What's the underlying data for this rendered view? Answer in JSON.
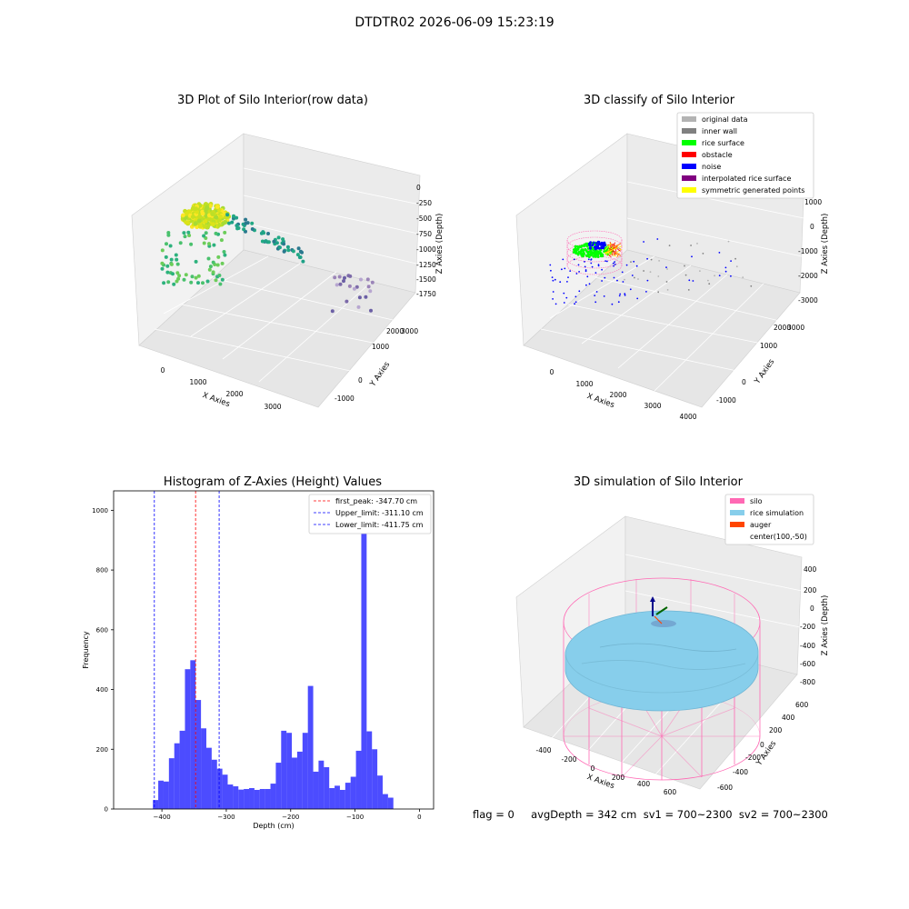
{
  "suptitle": "DTDTR02 2026-06-09 15:23:19",
  "panels": {
    "raw": {
      "title": "3D Plot of Silo Interior(row data)",
      "xlabel": "X Axies",
      "ylabel": "Y Axies",
      "zlabel": "Z Axies (Depth)",
      "xticks": [
        "0",
        "1000",
        "2000",
        "3000"
      ],
      "yticks": [
        "-1000",
        "0",
        "1000",
        "2000",
        "3000"
      ],
      "zticks": [
        "0",
        "-250",
        "-500",
        "-750",
        "-1000",
        "-1250",
        "-1500",
        "-1750"
      ]
    },
    "classify": {
      "title": "3D classify of Silo Interior",
      "xlabel": "X Axies",
      "ylabel": "Y Axies",
      "zlabel": "Z Axies (Depth)",
      "xticks": [
        "0",
        "1000",
        "2000",
        "3000",
        "4000"
      ],
      "yticks": [
        "-1000",
        "0",
        "1000",
        "2000",
        "3000"
      ],
      "zticks": [
        "1000",
        "0",
        "-1000",
        "-2000",
        "-3000"
      ],
      "legend": [
        {
          "label": "original data",
          "color": "#b3b3b3"
        },
        {
          "label": "inner wall",
          "color": "#808080"
        },
        {
          "label": "rice surface",
          "color": "#00ff00"
        },
        {
          "label": "obstacle",
          "color": "#ff0000"
        },
        {
          "label": "noise",
          "color": "#0000ff"
        },
        {
          "label": "interpolated rice surface",
          "color": "#800080"
        },
        {
          "label": "symmetric generated points",
          "color": "#ffff00"
        }
      ]
    },
    "sim": {
      "title": "3D simulation of Silo Interior",
      "xlabel": "X Axies",
      "ylabel": "Y Axies",
      "zlabel": "Z Axies (Depth)",
      "xticks": [
        "-400",
        "-200",
        "0",
        "200",
        "400",
        "600"
      ],
      "yticks": [
        "-600",
        "-400",
        "-200",
        "0",
        "200",
        "400",
        "600"
      ],
      "zticks": [
        "400",
        "200",
        "0",
        "-200",
        "-400",
        "-600",
        "-800"
      ],
      "legend": [
        {
          "label": "silo",
          "color": "#ff69b4"
        },
        {
          "label": "rice simulation",
          "color": "#87ceeb"
        },
        {
          "label": "auger",
          "color": "#ff4500"
        },
        {
          "label": "center(100,-50)",
          "color": "none"
        }
      ]
    }
  },
  "footer": "flag = 0     avgDepth = 342 cm  sv1 = 700~2300  sv2 = 700~2300",
  "chart_data": [
    {
      "type": "scatter",
      "title": "3D Plot of Silo Interior(row data)",
      "xlabel": "X Axies",
      "ylabel": "Y Axies",
      "zlabel": "Z Axies (Depth)",
      "xlim": [
        -500,
        3800
      ],
      "ylim": [
        -1500,
        3300
      ],
      "zlim": [
        -1950,
        100
      ]
    },
    {
      "type": "scatter",
      "title": "3D classify of Silo Interior",
      "xlabel": "X Axies",
      "ylabel": "Y Axies",
      "zlabel": "Z Axies (Depth)",
      "legend_position": "top-right",
      "series": [
        {
          "name": "original data"
        },
        {
          "name": "inner wall"
        },
        {
          "name": "rice surface"
        },
        {
          "name": "obstacle"
        },
        {
          "name": "noise"
        },
        {
          "name": "interpolated rice surface"
        },
        {
          "name": "symmetric generated points"
        }
      ]
    },
    {
      "type": "bar",
      "title": "Histogram of Z-Axies (Height) Values",
      "xlabel": "Depth (cm)",
      "ylabel": "Frequency",
      "xlim": [
        -475,
        22
      ],
      "ylim": [
        0,
        1065
      ],
      "xticks": [
        -400,
        -300,
        -200,
        -100,
        0
      ],
      "yticks": [
        0,
        200,
        400,
        600,
        800,
        1000
      ],
      "bin_start": -414,
      "bin_width": 8.3,
      "values": [
        30,
        95,
        92,
        170,
        220,
        262,
        468,
        498,
        365,
        270,
        205,
        165,
        135,
        115,
        82,
        76,
        65,
        67,
        70,
        64,
        67,
        67,
        85,
        155,
        262,
        255,
        172,
        192,
        255,
        412,
        125,
        162,
        140,
        70,
        78,
        64,
        88,
        108,
        195,
        1000,
        260,
        200,
        112,
        50,
        38
      ],
      "vlines": [
        {
          "name": "first_peak: -347.70 cm",
          "x": -347.7,
          "color": "#ff0000"
        },
        {
          "name": "Upper_limit: -311.10 cm",
          "x": -311.1,
          "color": "#0000ff"
        },
        {
          "name": "Lower_limit: -411.75 cm",
          "x": -411.75,
          "color": "#0000ff"
        }
      ],
      "legend_position": "top-right",
      "bar_color": "#0000ff"
    },
    {
      "type": "scatter",
      "title": "3D simulation of Silo Interior",
      "xlabel": "X Axies",
      "ylabel": "Y Axies",
      "zlabel": "Z Axies (Depth)",
      "legend_position": "top-right",
      "series": [
        {
          "name": "silo"
        },
        {
          "name": "rice simulation"
        },
        {
          "name": "auger"
        },
        {
          "name": "center(100,-50)"
        }
      ]
    }
  ]
}
